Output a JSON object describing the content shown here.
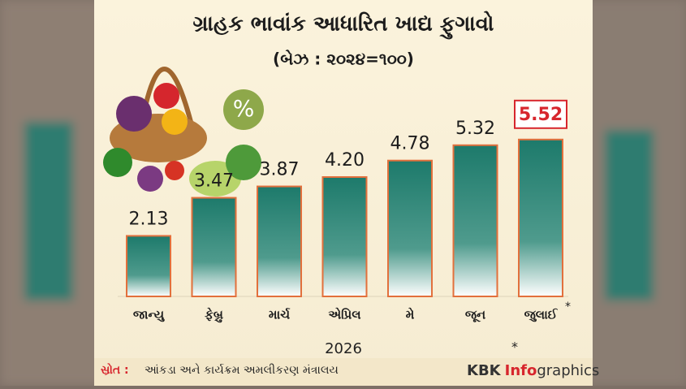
{
  "chart_data": {
    "type": "bar",
    "title": "ગ્રાહક ભાવાંક આધારિત ખાદ્ય ફુગાવો",
    "subtitle": "(બેઝ : ૨૦૨૪=૧૦૦)",
    "categories": [
      "જાન્યુ",
      "ફેબ્રુ",
      "માર્ચ",
      "એપ્રિલ",
      "મે",
      "જૂન",
      "જુલાઈ"
    ],
    "values": [
      2.13,
      3.47,
      3.87,
      4.2,
      4.78,
      5.32,
      5.52
    ],
    "value_labels": [
      "2.13",
      "3.47",
      "3.87",
      "4.20",
      "4.78",
      "5.32",
      "5.52"
    ],
    "color": "#1d7a6b",
    "outline_color": "#e2703c",
    "highlight_index": 6,
    "highlight_color": "#d7262d",
    "note_mark": "*",
    "x_label": "2026",
    "icon_text": "%",
    "source_label": "સ્રોત :",
    "source": "આંકડા અને કાર્યક્રમ અમલીકરણ મંત્રાલય",
    "brand_prefix": "KBK",
    "brand_main": "Info",
    "brand_suffix": "graphics"
  }
}
